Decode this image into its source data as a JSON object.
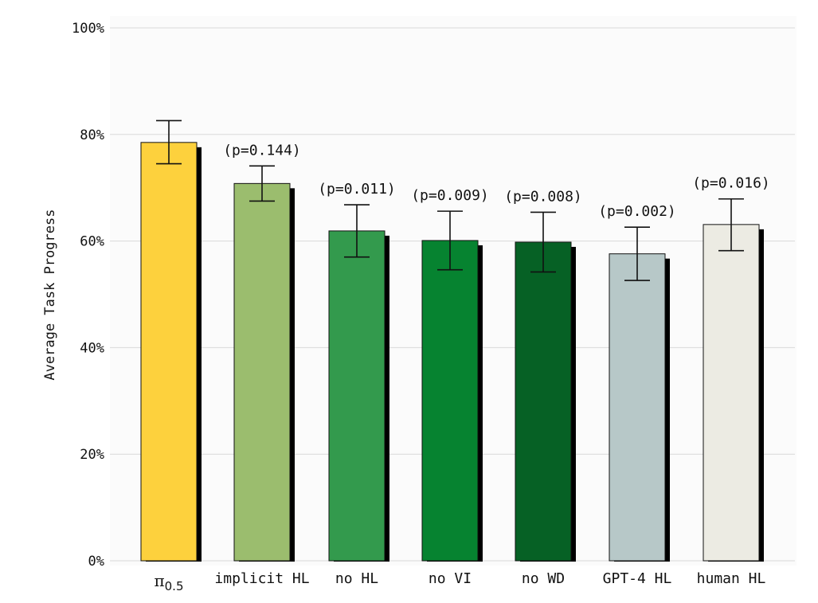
{
  "chart_data": {
    "type": "bar",
    "title": "",
    "xlabel": "",
    "ylabel": "Average Task Progress",
    "ylim": [
      0,
      100
    ],
    "yticks": [
      "0%",
      "20%",
      "40%",
      "60%",
      "80%",
      "100%"
    ],
    "grid": true,
    "categories": [
      {
        "main": "π",
        "sub": "0.5"
      },
      {
        "main": "implicit HL",
        "sub": ""
      },
      {
        "main": "no HL",
        "sub": ""
      },
      {
        "main": "no VI",
        "sub": ""
      },
      {
        "main": "no WD",
        "sub": ""
      },
      {
        "main": "GPT-4 HL",
        "sub": ""
      },
      {
        "main": "human HL",
        "sub": ""
      }
    ],
    "values": [
      78.5,
      70.8,
      61.9,
      60.1,
      59.8,
      57.6,
      63.1
    ],
    "error_low": [
      74.5,
      67.5,
      57.0,
      54.6,
      54.2,
      52.6,
      58.2
    ],
    "error_high": [
      82.6,
      74.1,
      66.8,
      65.6,
      65.4,
      62.6,
      67.9
    ],
    "p_values": [
      "",
      "(p=0.144)",
      "(p=0.011)",
      "(p=0.009)",
      "(p=0.008)",
      "(p=0.002)",
      "(p=0.016)"
    ],
    "colors": [
      "#fdd13d",
      "#9bbd6e",
      "#339a4d",
      "#068330",
      "#066125",
      "#b7c8c8",
      "#ecebe3"
    ]
  }
}
